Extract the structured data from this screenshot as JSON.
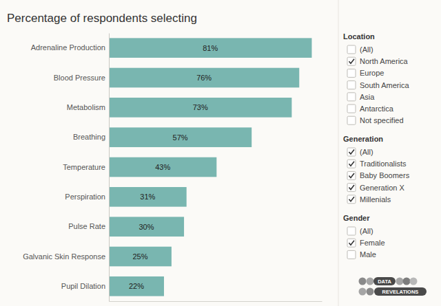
{
  "chart_data": {
    "type": "bar",
    "orientation": "horizontal",
    "title": "Percentage of respondents selecting",
    "categories": [
      "Adrenaline Production",
      "Blood Pressure",
      "Metabolism",
      "Breathing",
      "Temperature",
      "Perspiration",
      "Pulse Rate",
      "Galvanic Skin Response",
      "Pupil Dilation"
    ],
    "values": [
      81,
      76,
      73,
      57,
      43,
      31,
      30,
      25,
      22
    ],
    "value_labels": [
      "81%",
      "76%",
      "73%",
      "57%",
      "43%",
      "31%",
      "30%",
      "25%",
      "22%"
    ],
    "color": "#79b6b0",
    "xlim": [
      0,
      85
    ],
    "xticks": [],
    "data_labels": true,
    "tick_labels": "y",
    "grid": false
  },
  "filters": [
    {
      "title": "Location",
      "options": [
        {
          "label": "(All)",
          "checked": false
        },
        {
          "label": "North America",
          "checked": true
        },
        {
          "label": "Europe",
          "checked": false
        },
        {
          "label": "South America",
          "checked": false
        },
        {
          "label": "Asia",
          "checked": false
        },
        {
          "label": "Antarctica",
          "checked": false
        },
        {
          "label": "Not specified",
          "checked": false
        }
      ]
    },
    {
      "title": "Generation",
      "options": [
        {
          "label": "(All)",
          "checked": true
        },
        {
          "label": "Traditionalists",
          "checked": true
        },
        {
          "label": "Baby Boomers",
          "checked": true
        },
        {
          "label": "Generation X",
          "checked": true
        },
        {
          "label": "Millenials",
          "checked": true
        }
      ]
    },
    {
      "title": "Gender",
      "options": [
        {
          "label": "(All)",
          "checked": false
        },
        {
          "label": "Female",
          "checked": true
        },
        {
          "label": "Male",
          "checked": false
        }
      ]
    }
  ],
  "logo": [
    "DATA",
    "REVELATIONS"
  ]
}
